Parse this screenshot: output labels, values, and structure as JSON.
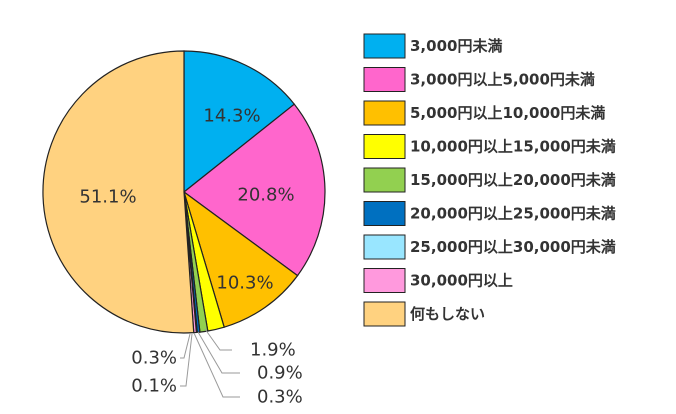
{
  "chart_data": {
    "type": "pie",
    "start": "top",
    "direction": "clockwise",
    "legend_position": "right",
    "slices": [
      {
        "label": "3,000円未満",
        "value": 14.3,
        "display": "14.3%",
        "color": "#00b0f0"
      },
      {
        "label": "3,000円以上5,000円未満",
        "value": 20.8,
        "display": "20.8%",
        "color": "#ff66cc"
      },
      {
        "label": "5,000円以上10,000円未満",
        "value": 10.3,
        "display": "10.3%",
        "color": "#ffc000"
      },
      {
        "label": "10,000円以上15,000円未満",
        "value": 1.9,
        "display": "1.9%",
        "color": "#ffff00"
      },
      {
        "label": "15,000円以上20,000円未満",
        "value": 0.9,
        "display": "0.9%",
        "color": "#92d050"
      },
      {
        "label": "20,000円以上25,000円未満",
        "value": 0.3,
        "display": "0.3%",
        "color": "#0070c0"
      },
      {
        "label": "25,000円以上30,000円未満",
        "value": 0.1,
        "display": "0.1%",
        "color": "#99e6ff"
      },
      {
        "label": "30,000円以上",
        "value": 0.3,
        "display": "0.3%",
        "color": "#ff99dd"
      },
      {
        "label": "何もしない",
        "value": 51.1,
        "display": "51.1%",
        "color": "#ffd280"
      }
    ]
  }
}
